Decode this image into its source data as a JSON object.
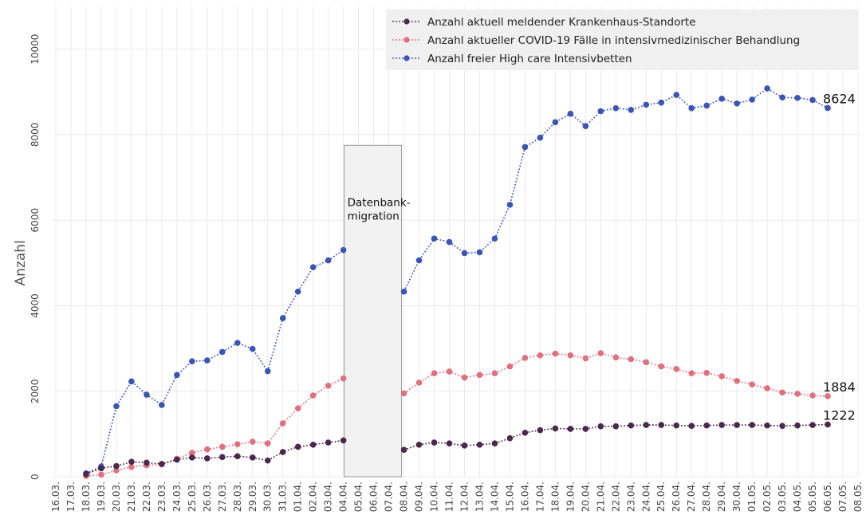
{
  "chart_data": {
    "type": "line",
    "ylabel": "Anzahl",
    "ylim": [
      0,
      11000
    ],
    "y_ticks": [
      0,
      2000,
      4000,
      6000,
      8000,
      10000
    ],
    "y_tick_labels": [
      "0",
      "2000",
      "4000",
      "6000",
      "8000",
      "10000"
    ],
    "grid": true,
    "legend_position": "top-right",
    "categories": [
      "16.03.",
      "17.03.",
      "18.03.",
      "19.03.",
      "20.03.",
      "21.03.",
      "22.03.",
      "23.03.",
      "24.03.",
      "25.03.",
      "26.03.",
      "27.03.",
      "28.03.",
      "29.03.",
      "30.03.",
      "31.03.",
      "01.04.",
      "02.04.",
      "03.04.",
      "04.04.",
      "05.04.",
      "06.04.",
      "07.04.",
      "08.04.",
      "09.04.",
      "10.04.",
      "11.04.",
      "12.04.",
      "13.04.",
      "14.04.",
      "15.04.",
      "16.04.",
      "17.04.",
      "18.04.",
      "19.04.",
      "20.04.",
      "21.04.",
      "22.04.",
      "23.04.",
      "24.04.",
      "25.04.",
      "26.04.",
      "27.04.",
      "28.04.",
      "29.04.",
      "30.04.",
      "01.05.",
      "02.05.",
      "03.05.",
      "04.05.",
      "05.05.",
      "06.05.",
      "07.05.",
      "08.05."
    ],
    "series": [
      {
        "name": "Anzahl aktuell meldender Krankenhaus-Standorte",
        "color": "#4a2a4a",
        "values": [
          null,
          null,
          60,
          200,
          250,
          350,
          330,
          300,
          400,
          450,
          430,
          460,
          480,
          450,
          380,
          580,
          700,
          750,
          800,
          850,
          null,
          null,
          null,
          630,
          750,
          800,
          780,
          730,
          750,
          780,
          900,
          1030,
          1090,
          1130,
          1120,
          1120,
          1180,
          1180,
          1200,
          1210,
          1210,
          1200,
          1190,
          1200,
          1210,
          1210,
          1210,
          1200,
          1190,
          1200,
          1210,
          1222,
          null,
          null
        ]
      },
      {
        "name": "Anzahl aktueller COVID-19 Fälle in intensivmedizinischer Behandlung",
        "color": "#e0707f",
        "values": [
          null,
          null,
          20,
          50,
          150,
          230,
          270,
          290,
          420,
          560,
          640,
          700,
          760,
          820,
          780,
          1250,
          1600,
          1900,
          2130,
          2300,
          null,
          null,
          null,
          1950,
          2200,
          2420,
          2460,
          2320,
          2380,
          2420,
          2580,
          2780,
          2840,
          2880,
          2840,
          2770,
          2890,
          2790,
          2750,
          2680,
          2580,
          2520,
          2420,
          2430,
          2350,
          2240,
          2160,
          2070,
          1970,
          1940,
          1900,
          1884,
          null,
          null
        ]
      },
      {
        "name": "Anzahl freier High care Intensivbetten",
        "color": "#3b55b5",
        "values": [
          null,
          null,
          80,
          240,
          1650,
          2230,
          1920,
          1680,
          2380,
          2700,
          2720,
          2920,
          3130,
          2990,
          2470,
          3710,
          4330,
          4900,
          5060,
          5300,
          null,
          null,
          null,
          4330,
          5060,
          5570,
          5490,
          5230,
          5250,
          5570,
          6360,
          7710,
          7930,
          8290,
          8490,
          8200,
          8550,
          8620,
          8580,
          8700,
          8750,
          8930,
          8620,
          8680,
          8840,
          8730,
          8820,
          9080,
          8870,
          8860,
          8810,
          8624,
          null,
          null
        ]
      }
    ],
    "end_labels": [
      "8624",
      "1884",
      "1222"
    ],
    "annotation": {
      "lines": [
        "Datenbank-",
        "migration"
      ],
      "x_start": "04.04.",
      "x_end": "08.04.",
      "y_top": 7750
    }
  }
}
